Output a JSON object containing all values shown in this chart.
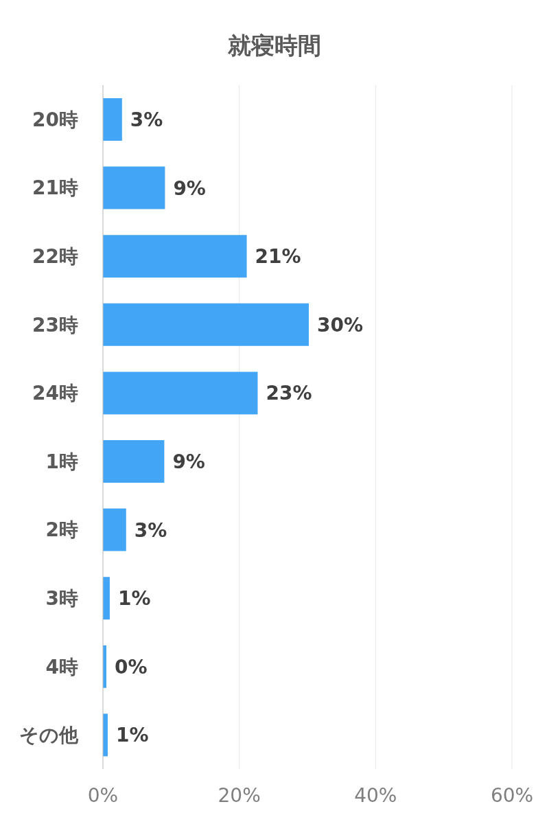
{
  "chart_data": {
    "type": "bar",
    "orientation": "horizontal",
    "title": "就寝時間",
    "categories": [
      "20時",
      "21時",
      "22時",
      "23時",
      "24時",
      "1時",
      "2時",
      "3時",
      "4時",
      "その他"
    ],
    "values": [
      2.8,
      9.1,
      21.1,
      30.2,
      22.7,
      9.0,
      3.4,
      1.0,
      0.5,
      0.7
    ],
    "value_labels": [
      "3%",
      "9%",
      "21%",
      "30%",
      "23%",
      "9%",
      "3%",
      "1%",
      "0%",
      "1%"
    ],
    "color": "#42a5f5",
    "xlim": [
      0,
      60
    ],
    "xticks": [
      {
        "value": 0,
        "label": "0%"
      },
      {
        "value": 20,
        "label": "20%"
      },
      {
        "value": 40,
        "label": "40%"
      },
      {
        "value": 60,
        "label": "60%"
      }
    ],
    "grid": "x"
  }
}
